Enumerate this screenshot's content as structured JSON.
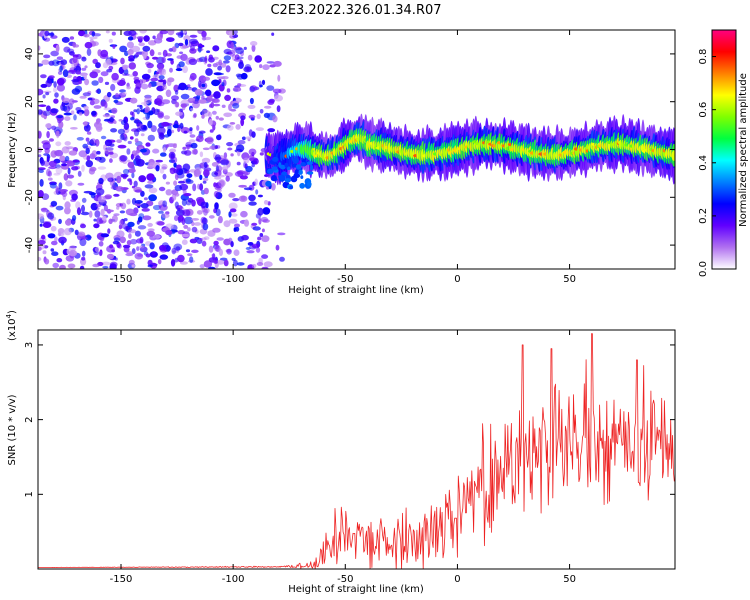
{
  "title": "C2E3.2022.326.01.34.R07",
  "colors": {
    "noise": "#7a1cf0",
    "snr_line": "#ee2222",
    "colorbar_stops": [
      "#ffffff",
      "#b070f0",
      "#6000ff",
      "#0000ff",
      "#0080ff",
      "#00ffff",
      "#00ff40",
      "#80ff00",
      "#ffff00",
      "#ff8000",
      "#ff0000",
      "#ff0080"
    ]
  },
  "chart_data": [
    {
      "type": "heatmap",
      "xlabel": "Height of straight line (km)",
      "ylabel": "Frequency (Hz)",
      "xlim": [
        -187,
        97
      ],
      "ylim": [
        -50,
        50
      ],
      "x_ticks": [
        -150,
        -100,
        -50,
        0,
        50
      ],
      "x_tick_labels": [
        "-150",
        "-100",
        "-50",
        "0",
        "50"
      ],
      "y_ticks": [
        -40,
        -20,
        0,
        20,
        40
      ],
      "y_tick_labels": [
        "-40",
        "-20",
        "0",
        "20",
        "40"
      ],
      "colorbar": {
        "label": "Normalized spectral amplitude",
        "range": [
          0,
          0.9
        ],
        "ticks": [
          0.0,
          0.2,
          0.4,
          0.6,
          0.8
        ],
        "tick_labels": [
          "0.0",
          "0.2",
          "0.4",
          "0.6",
          "0.8"
        ]
      },
      "features": {
        "noise_region_x": [
          -187,
          -78
        ],
        "noise_amplitude_range": [
          0.05,
          0.3
        ],
        "signal_start_x": -85,
        "signal_center_freq": 0,
        "signal_band_halfwidth_hz": 4,
        "signal_peak_amplitude": 0.85
      }
    },
    {
      "type": "line",
      "xlabel": "Height of straight line (km)",
      "ylabel": "SNR (10 * v/v)",
      "y_multiplier_label": "(x10",
      "y_multiplier_exp": "4",
      "y_multiplier_close": ")",
      "xlim": [
        -187,
        97
      ],
      "ylim": [
        0,
        32000
      ],
      "x_ticks": [
        -150,
        -100,
        -50,
        0,
        50
      ],
      "x_tick_labels": [
        "-150",
        "-100",
        "-50",
        "0",
        "50"
      ],
      "y_ticks": [
        10000,
        20000,
        30000
      ],
      "y_tick_labels": [
        "1",
        "2",
        "3"
      ],
      "trend_x": [
        -187,
        -80,
        -62,
        -55,
        -50,
        -40,
        -30,
        -20,
        -10,
        0,
        10,
        20,
        30,
        40,
        50,
        60,
        70,
        80,
        90,
        97
      ],
      "trend_y": [
        200,
        300,
        600,
        4000,
        6000,
        4000,
        3500,
        4000,
        5500,
        8000,
        11000,
        13500,
        15500,
        16000,
        16000,
        16500,
        16500,
        16000,
        16500,
        15500
      ],
      "noise_amplitude": [
        0,
        100,
        1000,
        4000,
        4000,
        4000,
        3500,
        4000,
        4500,
        5500,
        6500,
        7500,
        8500,
        8500,
        8500,
        8500,
        8500,
        8500,
        8500,
        7000
      ],
      "peak_points": [
        {
          "x": 29,
          "y": 30000
        },
        {
          "x": 42,
          "y": 29500
        },
        {
          "x": 60,
          "y": 31500
        },
        {
          "x": 80,
          "y": 28000
        }
      ]
    }
  ]
}
